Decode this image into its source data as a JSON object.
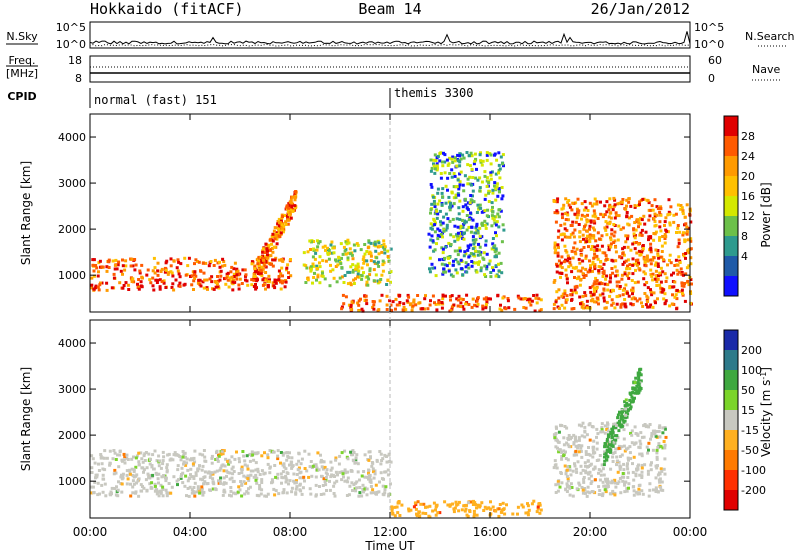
{
  "header": {
    "site": "Hokkaido (fitACF)",
    "beam": "Beam 14",
    "date": "26/Jan/2012"
  },
  "summary_panel": {
    "left_label": "N.Sky",
    "right_label": "N.Search",
    "y_ticks_left": [
      "10^5",
      "10^0"
    ],
    "y_ticks_right": [
      "10^5",
      "10^0"
    ]
  },
  "freq_panel": {
    "left_label_1": "Freq.",
    "left_label_2": "[MHz]",
    "right_label": "Nave",
    "y_ticks_left": [
      "18",
      "8"
    ],
    "y_ticks_right": [
      "60",
      "0"
    ]
  },
  "cpid": {
    "label": "CPID",
    "segments": [
      {
        "name": "normal (fast) 151",
        "start_hour": 0
      },
      {
        "name": "themis 3300",
        "start_hour": 12
      }
    ]
  },
  "chart_data": [
    {
      "type": "heatmap",
      "name": "power",
      "ylabel": "Slant Range [km]",
      "ylim": [
        200,
        4500
      ],
      "y_ticks": [
        "4000",
        "3000",
        "2000",
        "1000"
      ],
      "colorbar": {
        "label": "Power [dB]",
        "ticks": [
          "28",
          "24",
          "20",
          "16",
          "12",
          "8",
          "4"
        ],
        "colors": [
          "#e00000",
          "#ff5a00",
          "#ff9a00",
          "#ffc000",
          "#d4e800",
          "#6cc04a",
          "#2e9a8e",
          "#1f5aa8",
          "#1010ff"
        ]
      },
      "features": [
        {
          "label": "E-region band",
          "hours": [
            0,
            8
          ],
          "range_km": [
            700,
            1400
          ],
          "power_db": 26
        },
        {
          "label": "slanting echo",
          "hours": [
            6.5,
            8.2
          ],
          "range_km": [
            1000,
            2700
          ],
          "power_db": 24
        },
        {
          "label": "mid band",
          "hours": [
            8.5,
            12
          ],
          "range_km": [
            800,
            1800
          ],
          "power_db": 14
        },
        {
          "label": "scattered echoes",
          "hours": [
            13.5,
            16.5
          ],
          "range_km": [
            1000,
            3700
          ],
          "power_db": 8
        },
        {
          "label": "near range",
          "hours": [
            10,
            18
          ],
          "range_km": [
            250,
            600
          ],
          "power_db": 26
        },
        {
          "label": "evening echoes",
          "hours": [
            18.5,
            24
          ],
          "range_km": [
            300,
            2700
          ],
          "power_db": 24
        }
      ]
    },
    {
      "type": "heatmap",
      "name": "velocity",
      "ylabel": "Slant Range [km]",
      "xlabel": "Time UT",
      "ylim": [
        200,
        4500
      ],
      "y_ticks": [
        "4000",
        "3000",
        "2000",
        "1000"
      ],
      "x_ticks": [
        "00:00",
        "04:00",
        "08:00",
        "12:00",
        "16:00",
        "20:00",
        "00:00"
      ],
      "xlim_hours": [
        0,
        24
      ],
      "colorbar": {
        "label": "Velocity [m s",
        "label_sup": "-1",
        "label_end": "]",
        "ticks": [
          "200",
          "100",
          "50",
          "15",
          "-15",
          "-50",
          "-100",
          "-200"
        ],
        "colors": [
          "#1a2aa8",
          "#2e7a8a",
          "#3fa840",
          "#7bd42a",
          "#c8c8c0",
          "#ffb020",
          "#ff7a00",
          "#ff3000",
          "#e00000"
        ]
      },
      "features": [
        {
          "label": "ground scatter",
          "hours": [
            0,
            12
          ],
          "range_km": [
            700,
            1700
          ],
          "velocity": 0
        },
        {
          "label": "ground scatter",
          "hours": [
            18.5,
            23
          ],
          "range_km": [
            700,
            2300
          ],
          "velocity": 0
        },
        {
          "label": "near range flow",
          "hours": [
            12,
            18
          ],
          "range_km": [
            250,
            600
          ],
          "velocity": -50
        },
        {
          "label": "positive flow",
          "hours": [
            20.5,
            22
          ],
          "range_km": [
            1600,
            3300
          ],
          "velocity": 50
        }
      ]
    }
  ]
}
